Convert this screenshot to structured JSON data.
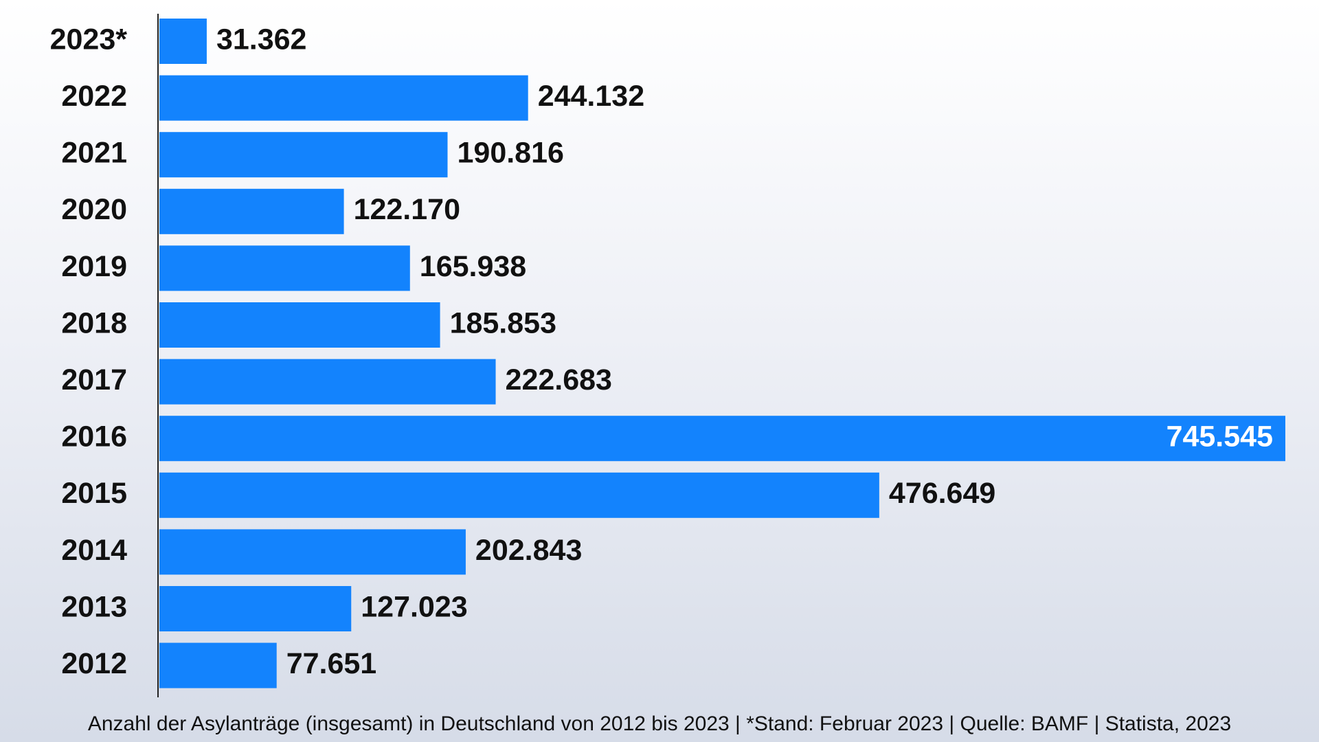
{
  "chart_data": {
    "type": "bar",
    "orientation": "horizontal",
    "color": "#1383fd",
    "categories": [
      "2023*",
      "2022",
      "2021",
      "2020",
      "2019",
      "2018",
      "2017",
      "2016",
      "2015",
      "2014",
      "2013",
      "2012"
    ],
    "values": [
      31362,
      244132,
      190816,
      122170,
      165938,
      185853,
      222683,
      745545,
      476649,
      202843,
      127023,
      77651
    ],
    "value_labels": [
      "31.362",
      "244.132",
      "190.816",
      "122.170",
      "165.938",
      "185.853",
      "222.683",
      "745.545",
      "476.649",
      "202.843",
      "127.023",
      "77.651"
    ],
    "caption": "Anzahl der Asylanträge (insgesamt) in Deutschland von 2012 bis 2023 | *Stand: Februar 2023 | Quelle: BAMF | Statista, 2023"
  }
}
